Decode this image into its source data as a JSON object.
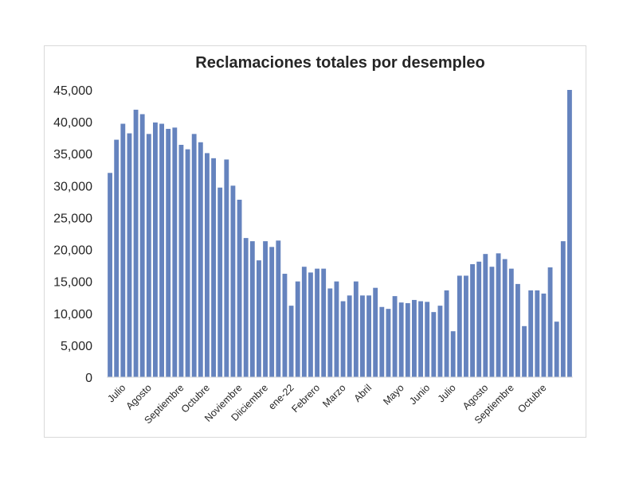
{
  "chart_data": {
    "type": "bar",
    "title": "Reclamaciones totales por desempleo",
    "xlabel": "",
    "ylabel": "",
    "ylim": [
      0,
      45000
    ],
    "yticks": [
      "0",
      "5,000",
      "10,000",
      "15,000",
      "20,000",
      "25,000",
      "30,000",
      "35,000",
      "40,000",
      "45,000"
    ],
    "color": "#6583BE",
    "grid": false,
    "legend": "none",
    "month_labels": [
      {
        "label": "Julio",
        "index": 2
      },
      {
        "label": "Agosto",
        "index": 6
      },
      {
        "label": "Septiembre",
        "index": 11
      },
      {
        "label": "Octubre",
        "index": 15
      },
      {
        "label": "Noviembre",
        "index": 20
      },
      {
        "label": "Diiciembre",
        "index": 24
      },
      {
        "label": "ene-22",
        "index": 28
      },
      {
        "label": "Febrero",
        "index": 32
      },
      {
        "label": "Marzo",
        "index": 36
      },
      {
        "label": "Abril",
        "index": 40
      },
      {
        "label": "Mayo",
        "index": 45
      },
      {
        "label": "Junio",
        "index": 49
      },
      {
        "label": "Julio",
        "index": 53
      },
      {
        "label": "Agosto",
        "index": 58
      },
      {
        "label": "Septiembre",
        "index": 62
      },
      {
        "label": "Octubre",
        "index": 67
      }
    ],
    "values": [
      32000,
      37200,
      39700,
      38200,
      41900,
      41200,
      38100,
      39900,
      39700,
      38900,
      39100,
      36400,
      35700,
      38100,
      36800,
      35100,
      34300,
      29700,
      34100,
      30000,
      27800,
      21800,
      21300,
      18300,
      21300,
      20400,
      21400,
      16200,
      11200,
      15000,
      17300,
      16400,
      17000,
      17000,
      13900,
      15000,
      11900,
      12800,
      15000,
      12800,
      12800,
      14000,
      11000,
      10700,
      12700,
      11700,
      11600,
      12100,
      11900,
      11800,
      10200,
      11200,
      13600,
      7200,
      15900,
      15900,
      17700,
      18100,
      19300,
      17300,
      19400,
      18500,
      17000,
      14600,
      8000,
      13600,
      13600,
      13100,
      17200,
      8700,
      21300,
      45000
    ]
  }
}
